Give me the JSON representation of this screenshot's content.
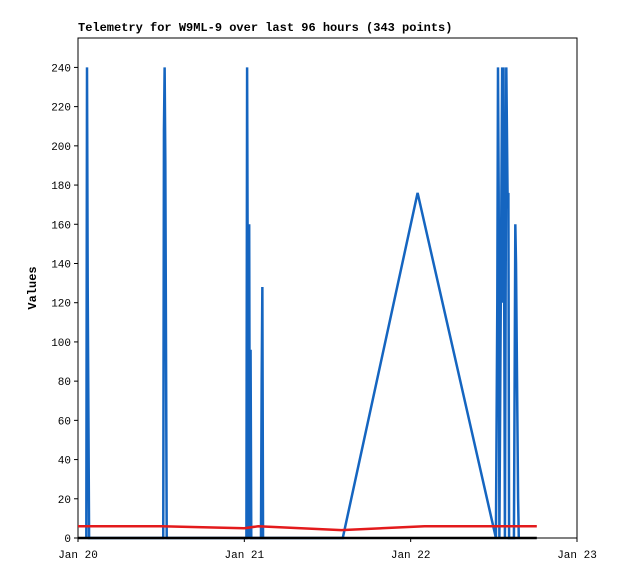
{
  "chart_data": {
    "type": "line",
    "title": "Telemetry for W9ML-9 over last 96 hours (343 points)",
    "y_label": "Values",
    "xlim": [
      0,
      72
    ],
    "xticks": [
      {
        "value": 0,
        "label": "Jan 20"
      },
      {
        "value": 24,
        "label": "Jan 21"
      },
      {
        "value": 48,
        "label": "Jan 22"
      },
      {
        "value": 72,
        "label": "Jan 23"
      }
    ],
    "ylim": [
      0,
      255
    ],
    "yticks": [
      0,
      20,
      40,
      60,
      80,
      100,
      120,
      140,
      160,
      180,
      200,
      220,
      240
    ],
    "series": [
      {
        "color": "#1565c0",
        "x": [
          1.2,
          1.3,
          1.4,
          1.5,
          1.6,
          12.3,
          12.4,
          12.5,
          12.6,
          12.7,
          12.8,
          24.3,
          24.4,
          24.6,
          24.7,
          24.8,
          24.9,
          25.0,
          26.4,
          26.5,
          26.6,
          26.7,
          38.2,
          49.0,
          60.3,
          60.5,
          60.6,
          60.7,
          60.8,
          61.2,
          61.3,
          61.4,
          61.6,
          61.8,
          62.0,
          62.1,
          62.2,
          62.9,
          63.0,
          63.1,
          63.2,
          63.3,
          63.4,
          63.5,
          63.6
        ],
        "values": [
          0,
          240,
          128,
          64,
          0,
          0,
          208,
          240,
          192,
          96,
          0,
          0,
          240,
          0,
          160,
          0,
          96,
          0,
          0,
          80,
          128,
          0,
          0,
          176,
          0,
          120,
          240,
          176,
          0,
          240,
          120,
          240,
          0,
          240,
          168,
          176,
          0,
          0,
          80,
          160,
          140,
          100,
          60,
          20,
          0
        ]
      },
      {
        "color": "#e31a1c",
        "x": [
          0,
          12,
          18,
          24,
          26,
          38,
          50,
          60,
          66.2
        ],
        "values": [
          6,
          6,
          5.5,
          5,
          6,
          4,
          6,
          6,
          6
        ]
      },
      {
        "color": "#000000",
        "x": [
          0,
          66.2
        ],
        "values": [
          0,
          0
        ]
      }
    ]
  }
}
